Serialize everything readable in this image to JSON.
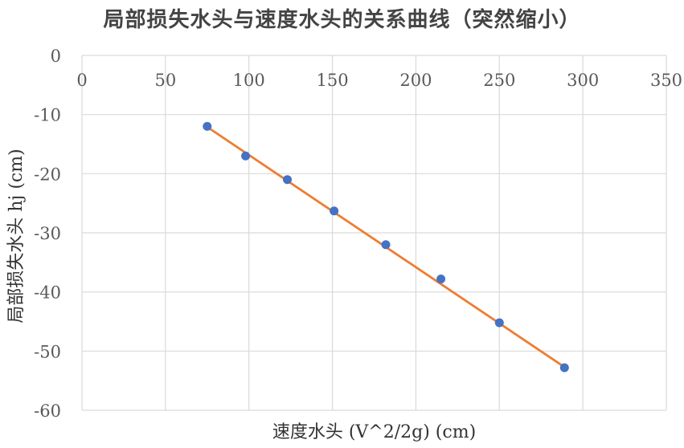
{
  "chart_data": {
    "type": "scatter",
    "title": "局部损失水头与速度水头的关系曲线（突然缩小）",
    "xlabel": "速度水头 (V^2/2g) (cm)",
    "ylabel": "局部损失水头 hj (cm)",
    "xlim": [
      0,
      350
    ],
    "ylim": [
      -60,
      0
    ],
    "x_ticks": [
      0,
      50,
      100,
      150,
      200,
      250,
      300,
      350
    ],
    "y_ticks": [
      0,
      -10,
      -20,
      -30,
      -40,
      -50,
      -60
    ],
    "x_tick_labels": [
      "0",
      "50",
      "100",
      "150",
      "200",
      "250",
      "300",
      "350"
    ],
    "y_tick_labels": [
      "0",
      "-10",
      "-20",
      "-30",
      "-40",
      "-50",
      "-60"
    ],
    "grid": true,
    "x_axis_position": "top",
    "series": [
      {
        "type": "scatter",
        "color": "#4472C4",
        "x": [
          75,
          98,
          123,
          151,
          182,
          215,
          250,
          289
        ],
        "y": [
          -12,
          -17,
          -21,
          -26.3,
          -32,
          -37.8,
          -45.2,
          -52.8
        ]
      },
      {
        "type": "trendline",
        "color": "#ED7D31",
        "x": [
          75,
          289
        ],
        "y": [
          -12.1,
          -52.7
        ]
      }
    ]
  }
}
